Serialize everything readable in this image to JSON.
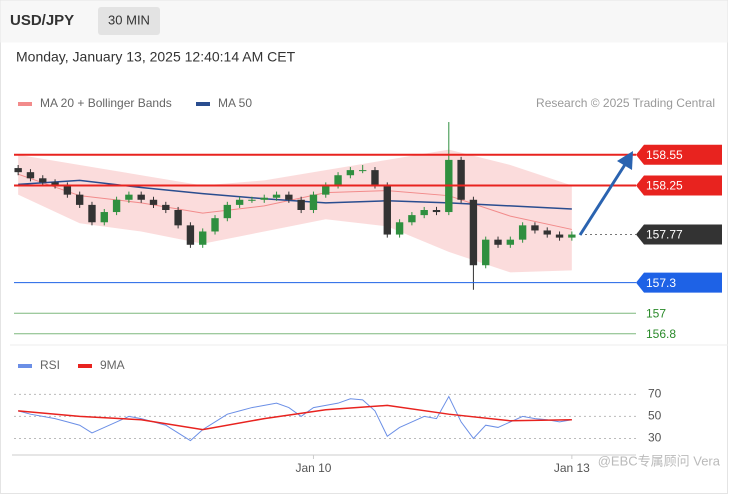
{
  "header": {
    "symbol": "USD/JPY",
    "interval": "30 MIN",
    "datetime": "Monday, January 13, 2025 12:40:14 AM CET"
  },
  "chart_data": [
    {
      "type": "candlestick",
      "source": "Research © 2025 Trading Central",
      "xlim": [
        -0.5,
        45.5
      ],
      "ylim": [
        156.69,
        158.89
      ],
      "xticks": [
        {
          "value": 24,
          "label": "Jan 10"
        },
        {
          "value": 45,
          "label": "Jan 13"
        }
      ],
      "candles": [
        [
          158.42,
          158.45,
          158.35,
          158.38
        ],
        [
          158.38,
          158.41,
          158.29,
          158.32
        ],
        [
          158.32,
          158.35,
          158.25,
          158.28
        ],
        [
          158.28,
          158.31,
          158.22,
          158.25
        ],
        [
          158.25,
          158.28,
          158.13,
          158.16
        ],
        [
          158.16,
          158.19,
          158.03,
          158.06
        ],
        [
          158.06,
          158.09,
          157.86,
          157.89
        ],
        [
          157.89,
          158.02,
          157.86,
          157.99
        ],
        [
          157.99,
          158.14,
          157.96,
          158.11
        ],
        [
          158.11,
          158.19,
          158.08,
          158.16
        ],
        [
          158.16,
          158.19,
          158.08,
          158.11
        ],
        [
          158.11,
          158.14,
          158.03,
          158.06
        ],
        [
          158.06,
          158.09,
          157.98,
          158.01
        ],
        [
          158.01,
          158.04,
          157.83,
          157.86
        ],
        [
          157.86,
          157.89,
          157.64,
          157.67
        ],
        [
          157.67,
          157.83,
          157.64,
          157.8
        ],
        [
          157.8,
          157.96,
          157.77,
          157.93
        ],
        [
          157.93,
          158.09,
          157.9,
          158.06
        ],
        [
          158.06,
          158.14,
          158.03,
          158.11
        ],
        [
          158.11,
          158.14,
          158.08,
          158.11
        ],
        [
          158.11,
          158.16,
          158.08,
          158.13
        ],
        [
          158.13,
          158.19,
          158.1,
          158.16
        ],
        [
          158.16,
          158.19,
          158.08,
          158.11
        ],
        [
          158.11,
          158.14,
          157.98,
          158.01
        ],
        [
          158.01,
          158.19,
          157.98,
          158.16
        ],
        [
          158.16,
          158.28,
          158.13,
          158.25
        ],
        [
          158.25,
          158.38,
          158.22,
          158.35
        ],
        [
          158.35,
          158.43,
          158.32,
          158.4
        ],
        [
          158.4,
          158.45,
          158.37,
          158.4
        ],
        [
          158.4,
          158.43,
          158.22,
          158.25
        ],
        [
          158.25,
          158.28,
          157.74,
          157.77
        ],
        [
          157.77,
          157.92,
          157.74,
          157.89
        ],
        [
          157.89,
          157.99,
          157.86,
          157.96
        ],
        [
          157.96,
          158.04,
          157.93,
          158.01
        ],
        [
          158.01,
          158.04,
          157.96,
          157.99
        ],
        [
          157.99,
          158.87,
          157.96,
          158.5
        ],
        [
          158.5,
          158.53,
          158.08,
          158.11
        ],
        [
          158.11,
          158.14,
          157.23,
          157.47
        ],
        [
          157.47,
          157.75,
          157.44,
          157.72
        ],
        [
          157.72,
          157.75,
          157.64,
          157.67
        ],
        [
          157.67,
          157.75,
          157.64,
          157.72
        ],
        [
          157.72,
          157.89,
          157.69,
          157.86
        ],
        [
          157.86,
          157.89,
          157.78,
          157.81
        ],
        [
          157.81,
          157.84,
          157.74,
          157.77
        ],
        [
          157.77,
          157.8,
          157.71,
          157.74
        ],
        [
          157.74,
          157.8,
          157.71,
          157.77
        ]
      ],
      "up_color": "#2f8f3f",
      "down_color": "#333333",
      "series": [
        {
          "name": "MA 20 + Bollinger Bands",
          "color": "#f28b8b",
          "x": [
            0,
            5,
            10,
            15,
            20,
            25,
            30,
            35,
            40,
            45
          ],
          "values": [
            158.36,
            158.15,
            158.08,
            157.98,
            158.05,
            158.18,
            158.2,
            158.15,
            157.95,
            157.82
          ],
          "upper": [
            158.55,
            158.45,
            158.35,
            158.25,
            158.3,
            158.4,
            158.5,
            158.6,
            158.45,
            158.25
          ],
          "lower": [
            158.16,
            157.88,
            157.8,
            157.68,
            157.8,
            157.92,
            157.85,
            157.6,
            157.4,
            157.42
          ]
        },
        {
          "name": "MA 50",
          "color": "#2a4d8f",
          "x": [
            0,
            5,
            10,
            15,
            20,
            25,
            30,
            35,
            40,
            45
          ],
          "values": [
            158.26,
            158.3,
            158.23,
            158.17,
            158.12,
            158.08,
            158.1,
            158.08,
            158.05,
            158.02
          ]
        }
      ],
      "levels": [
        {
          "value": 158.55,
          "color": "#e8231f",
          "style": "box"
        },
        {
          "value": 158.25,
          "color": "#e8231f",
          "style": "box"
        },
        {
          "value": 157.77,
          "color": "#333333",
          "style": "box"
        },
        {
          "value": 157.3,
          "color": "#1e62e6",
          "style": "box"
        },
        {
          "value": 157.0,
          "color": "#2a8a2a",
          "style": "text"
        },
        {
          "value": 156.8,
          "color": "#2a8a2a",
          "style": "text"
        }
      ]
    },
    {
      "type": "line",
      "ylim": [
        15,
        83
      ],
      "yticks": [
        30,
        50,
        70
      ],
      "series": [
        {
          "name": "RSI",
          "color": "#6b8fe6",
          "values": [
            55,
            52,
            50,
            48,
            45,
            42,
            35,
            40,
            45,
            50,
            48,
            45,
            42,
            35,
            28,
            38,
            45,
            52,
            55,
            58,
            60,
            62,
            58,
            50,
            58,
            60,
            62,
            66,
            65,
            55,
            32,
            40,
            45,
            50,
            48,
            68,
            45,
            30,
            42,
            40,
            45,
            50,
            48,
            47,
            45,
            47
          ]
        },
        {
          "name": "9MA",
          "color": "#e8231f",
          "x": [
            0,
            5,
            10,
            15,
            20,
            25,
            30,
            35,
            40,
            45
          ],
          "values": [
            55,
            50,
            47,
            38,
            48,
            56,
            60,
            52,
            46,
            47
          ]
        }
      ]
    }
  ],
  "watermark": "@EBC专属顾问 Vera"
}
